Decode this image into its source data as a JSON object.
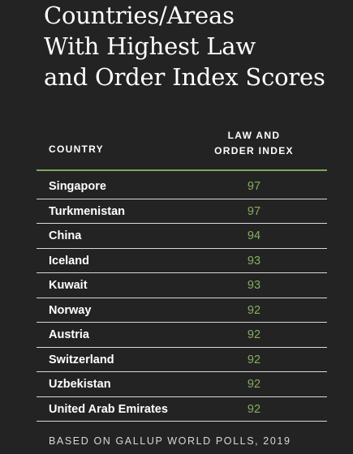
{
  "title_lines": [
    "Countries/Areas",
    "With Highest Law",
    "and Order Index Scores"
  ],
  "columns": {
    "country": "COUNTRY",
    "index_line1": "LAW AND",
    "index_line2": "ORDER INDEX"
  },
  "footnote": "BASED ON GALLUP WORLD POLLS, 2019",
  "colors": {
    "background": "#232323",
    "accent_green": "#7fa65a",
    "score_green": "#86ad5f",
    "divider": "#d9d9d9"
  },
  "chart_data": {
    "type": "table",
    "title": "Countries/Areas With Highest Law and Order Index Scores",
    "columns": [
      "COUNTRY",
      "LAW AND ORDER INDEX"
    ],
    "categories": [
      "Singapore",
      "Turkmenistan",
      "China",
      "Iceland",
      "Kuwait",
      "Norway",
      "Austria",
      "Switzerland",
      "Uzbekistan",
      "United Arab Emirates"
    ],
    "values": [
      97,
      97,
      94,
      93,
      93,
      92,
      92,
      92,
      92,
      92
    ]
  }
}
